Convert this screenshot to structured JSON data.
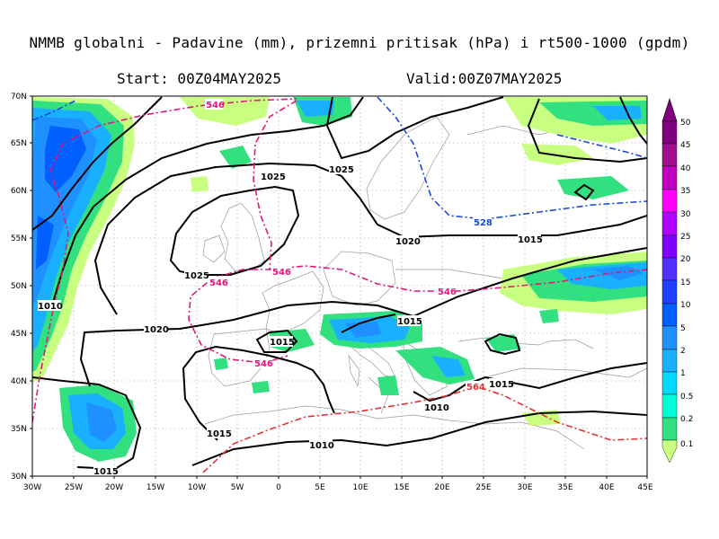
{
  "header": {
    "title": "NMMB globalni - Padavine (mm), prizemni pritisak (hPa) i rt500-1000 (gpdm)",
    "start": "Start: 00Z04MAY2025",
    "valid": "Valid:00Z07MAY2025"
  },
  "axes": {
    "lat_labels": [
      "70N",
      "65N",
      "60N",
      "55N",
      "50N",
      "45N",
      "40N",
      "35N",
      "30N"
    ],
    "lon_labels": [
      "30W",
      "25W",
      "20W",
      "15W",
      "10W",
      "5W",
      "0",
      "5E",
      "10E",
      "15E",
      "20E",
      "25E",
      "30E",
      "35E",
      "40E",
      "45E"
    ]
  },
  "colorbar": {
    "labels": [
      "50",
      "45",
      "40",
      "35",
      "30",
      "25",
      "20",
      "15",
      "10",
      "5",
      "2",
      "1",
      "0.5",
      "0.2",
      "0.1"
    ],
    "colors": [
      "#800080",
      "#a01090",
      "#c000c0",
      "#ff00ff",
      "#b000ff",
      "#8000ff",
      "#5030ff",
      "#2040ff",
      "#0060ff",
      "#1e90ff",
      "#18b0ff",
      "#00d8ff",
      "#00ffd8",
      "#33e080",
      "#c8ff80"
    ]
  },
  "isobars": {
    "labels": [
      "1025",
      "1025",
      "1025",
      "1020",
      "1015",
      "1010",
      "1020",
      "1015",
      "1015",
      "1015",
      "1010",
      "1010",
      "1015",
      "1015"
    ]
  },
  "thickness": {
    "labels": [
      "546",
      "546",
      "546",
      "546",
      "546",
      "528",
      "564"
    ]
  }
}
